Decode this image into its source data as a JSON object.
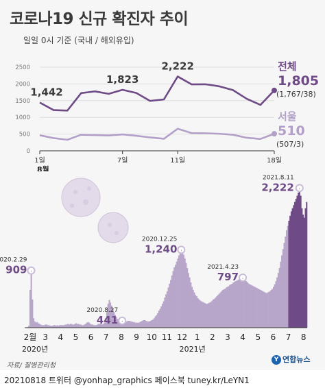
{
  "title": "코로나19 신규 확진자 추이",
  "subtitle": "일일 0시 기준 (국내 / 해외유입)",
  "source": "자료/ 질병관리청",
  "footer": "20210818 트위터 @yonhap_graphics  페이스북 tuney.kr/LeYN1",
  "logo": "연합뉴스",
  "logo_mark": "Y",
  "colors": {
    "total": "#6e4a86",
    "seoul": "#b3a0c8",
    "bar_old": "#b7a6c9",
    "bar_recent": "#6e4a86",
    "bg": "#f6f6f6"
  },
  "chart_data": [
    {
      "type": "line",
      "x_ticks": [
        "1일",
        "7일",
        "11일",
        "18일"
      ],
      "x_ticks_day": [
        1,
        7,
        11,
        18
      ],
      "month_label": "8월",
      "y_ticks": [
        "0",
        "500",
        "1000",
        "1500",
        "2000",
        "2500"
      ],
      "ylim": [
        0,
        2500
      ],
      "x": [
        1,
        2,
        3,
        4,
        5,
        6,
        7,
        8,
        9,
        10,
        11,
        12,
        13,
        14,
        15,
        16,
        17,
        18
      ],
      "series": [
        {
          "name": "전체",
          "values": [
            1442,
            1218,
            1202,
            1725,
            1776,
            1704,
            1823,
            1729,
            1492,
            1537,
            2222,
            1987,
            1990,
            1930,
            1816,
            1556,
            1372,
            1805
          ],
          "legend_value": "1,805",
          "legend_detail": "(1,767/38)"
        },
        {
          "name": "서울",
          "values": [
            465,
            380,
            330,
            480,
            470,
            460,
            490,
            450,
            400,
            360,
            660,
            530,
            525,
            510,
            480,
            390,
            355,
            510
          ],
          "legend_value": "510",
          "legend_detail": "(507/3)"
        }
      ],
      "point_labels": [
        {
          "day": 1,
          "text": "1,442"
        },
        {
          "day": 7,
          "text": "1,823"
        },
        {
          "day": 11,
          "text": "2,222"
        }
      ]
    },
    {
      "type": "bar",
      "x_ticks": [
        "2월",
        "3",
        "4",
        "5",
        "6",
        "7",
        "8",
        "9",
        "10",
        "11",
        "12",
        "1",
        "2",
        "3",
        "4",
        "5",
        "6",
        "7",
        "8"
      ],
      "year_labels": [
        "2020년",
        "2021년"
      ],
      "ylim": [
        0,
        2400
      ],
      "values": [
        0,
        5,
        10,
        30,
        600,
        909,
        450,
        150,
        100,
        80,
        90,
        70,
        60,
        50,
        40,
        40,
        40,
        50,
        50,
        40,
        40,
        30,
        30,
        30,
        40,
        40,
        30,
        40,
        30,
        40,
        40,
        40,
        40,
        40,
        50,
        50,
        60,
        50,
        60,
        60,
        50,
        50,
        60,
        70,
        60,
        60,
        50,
        50,
        40,
        40,
        50,
        60,
        80,
        90,
        80,
        60,
        50,
        50,
        40,
        40,
        40,
        50,
        60,
        60,
        60,
        50,
        60,
        80,
        150,
        250,
        380,
        441,
        400,
        350,
        300,
        250,
        200,
        170,
        140,
        120,
        110,
        100,
        110,
        110,
        100,
        90,
        100,
        110,
        110,
        100,
        100,
        90,
        90,
        80,
        80,
        80,
        80,
        90,
        100,
        110,
        120,
        120,
        110,
        100,
        100,
        100,
        110,
        120,
        130,
        150,
        180,
        200,
        230,
        270,
        300,
        340,
        380,
        420,
        480,
        530,
        580,
        640,
        700,
        760,
        830,
        900,
        960,
        1000,
        1050,
        1100,
        1150,
        1200,
        1240,
        1200,
        1160,
        1100,
        1030,
        950,
        870,
        800,
        720,
        650,
        600,
        560,
        520,
        500,
        470,
        450,
        430,
        420,
        410,
        400,
        390,
        380,
        380,
        390,
        400,
        410,
        430,
        450,
        460,
        480,
        500,
        520,
        540,
        560,
        580,
        600,
        610,
        620,
        640,
        650,
        660,
        680,
        690,
        700,
        720,
        730,
        740,
        750,
        760,
        770,
        780,
        790,
        797,
        780,
        760,
        740,
        720,
        700,
        690,
        680,
        670,
        660,
        650,
        640,
        630,
        620,
        610,
        600,
        590,
        580,
        570,
        560,
        550,
        560,
        570,
        580,
        600,
        620,
        650,
        690,
        740,
        800,
        870,
        950,
        1050,
        1150,
        1250,
        1350,
        1450,
        1550,
        1620,
        1700,
        1780,
        1850,
        1900,
        1950,
        2000,
        2050,
        2100,
        2150,
        2222,
        2100,
        1900,
        1800,
        1750,
        1900,
        2000
      ],
      "annotations": [
        {
          "date": "2020.2.29",
          "value": "909",
          "month_index": 1.0
        },
        {
          "date": "2020.8.27",
          "value": "441",
          "month_index": 6.9
        },
        {
          "date": "2020.12.25",
          "value": "1,240",
          "month_index": 10.8
        },
        {
          "date": "2021.4.23",
          "value": "797",
          "month_index": 14.7
        },
        {
          "date": "2021.8.11",
          "value": "2,222",
          "month_index": 18.3
        }
      ]
    }
  ]
}
